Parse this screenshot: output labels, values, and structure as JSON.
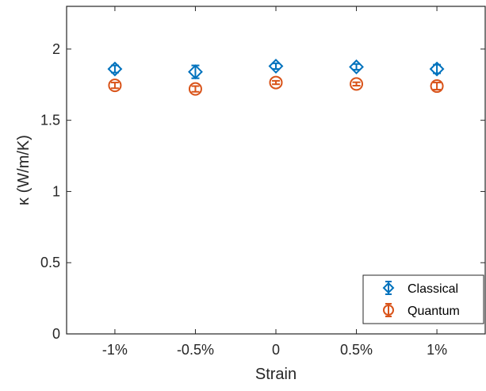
{
  "chart_data": {
    "type": "scatter",
    "categories": [
      "-1%",
      "-0.5%",
      "0",
      "0.5%",
      "1%"
    ],
    "x": [
      -1,
      -0.5,
      0,
      0.5,
      1
    ],
    "xlabel": "Strain",
    "ylabel": "κ (W/m/K)",
    "ylim": [
      0,
      2.3
    ],
    "yticks": [
      0,
      0.5,
      1,
      1.5,
      2
    ],
    "ytick_labels": [
      "0",
      "0.5",
      "1",
      "1.5",
      "2"
    ],
    "grid": false,
    "legend_position": "bottom-right",
    "series": [
      {
        "name": "Classical",
        "marker": "diamond",
        "color": "#0072BD",
        "values": [
          1.86,
          1.84,
          1.88,
          1.875,
          1.86
        ],
        "errors": [
          0.025,
          0.045,
          0.02,
          0.02,
          0.03
        ]
      },
      {
        "name": "Quantum",
        "marker": "circle",
        "color": "#D95319",
        "values": [
          1.745,
          1.72,
          1.765,
          1.755,
          1.74
        ],
        "errors": [
          0.02,
          0.02,
          0.012,
          0.012,
          0.025
        ]
      }
    ]
  }
}
